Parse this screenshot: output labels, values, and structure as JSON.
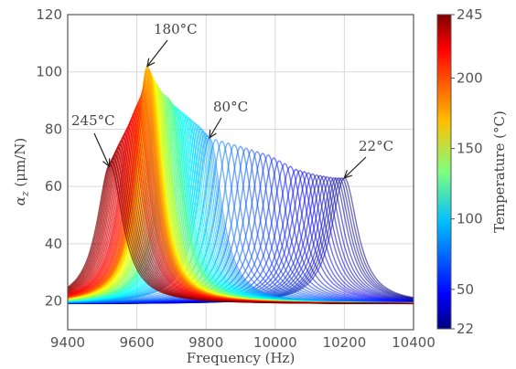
{
  "chart_data": {
    "type": "line",
    "xlabel": "Frequency (Hz)",
    "ylabel": "αz (μm/N)",
    "ylabel_parts": {
      "symbol": "α",
      "subscript": "z",
      "unit": " (μm/N)"
    },
    "xlim": [
      9400,
      10400
    ],
    "ylim": [
      10,
      120
    ],
    "xticks": [
      9400,
      9600,
      9800,
      10000,
      10200,
      10400
    ],
    "xtick_labels": [
      "9400",
      "9600",
      "9800",
      "10000",
      "10200",
      "10400"
    ],
    "yticks": [
      20,
      40,
      60,
      80,
      100,
      120
    ],
    "ytick_labels": [
      "20",
      "40",
      "60",
      "80",
      "100",
      "120"
    ],
    "grid": true,
    "colorbar": {
      "label": "Temperature (°C)",
      "colormap": "jet",
      "range": [
        22,
        245
      ],
      "ticks": [
        22,
        50,
        100,
        150,
        200,
        245
      ],
      "tick_labels": [
        "22",
        "50",
        "100",
        "150",
        "200",
        "245"
      ]
    },
    "series_description": "One frequency-response curve per temperature; each curve is a single resonance peak.",
    "representative_peaks": [
      {
        "temperature": 22,
        "peak_frequency": 10200,
        "peak_value": 63
      },
      {
        "temperature": 30,
        "peak_frequency": 10170,
        "peak_value": 63
      },
      {
        "temperature": 40,
        "peak_frequency": 10120,
        "peak_value": 64
      },
      {
        "temperature": 50,
        "peak_frequency": 10060,
        "peak_value": 66
      },
      {
        "temperature": 60,
        "peak_frequency": 9980,
        "peak_value": 71
      },
      {
        "temperature": 70,
        "peak_frequency": 9900,
        "peak_value": 74
      },
      {
        "temperature": 80,
        "peak_frequency": 9810,
        "peak_value": 77
      },
      {
        "temperature": 90,
        "peak_frequency": 9780,
        "peak_value": 81
      },
      {
        "temperature": 100,
        "peak_frequency": 9750,
        "peak_value": 84
      },
      {
        "temperature": 110,
        "peak_frequency": 9720,
        "peak_value": 87
      },
      {
        "temperature": 120,
        "peak_frequency": 9700,
        "peak_value": 89
      },
      {
        "temperature": 130,
        "peak_frequency": 9690,
        "peak_value": 91
      },
      {
        "temperature": 140,
        "peak_frequency": 9670,
        "peak_value": 93
      },
      {
        "temperature": 150,
        "peak_frequency": 9660,
        "peak_value": 95
      },
      {
        "temperature": 160,
        "peak_frequency": 9645,
        "peak_value": 98
      },
      {
        "temperature": 170,
        "peak_frequency": 9638,
        "peak_value": 100
      },
      {
        "temperature": 180,
        "peak_frequency": 9630,
        "peak_value": 102
      },
      {
        "temperature": 190,
        "peak_frequency": 9625,
        "peak_value": 96
      },
      {
        "temperature": 200,
        "peak_frequency": 9615,
        "peak_value": 92
      },
      {
        "temperature": 210,
        "peak_frequency": 9600,
        "peak_value": 88
      },
      {
        "temperature": 220,
        "peak_frequency": 9580,
        "peak_value": 82
      },
      {
        "temperature": 230,
        "peak_frequency": 9555,
        "peak_value": 76
      },
      {
        "temperature": 245,
        "peak_frequency": 9520,
        "peak_value": 67
      }
    ],
    "annotations": [
      {
        "text": "180°C",
        "points_to": {
          "x": 9630,
          "y": 102
        }
      },
      {
        "text": "80°C",
        "points_to": {
          "x": 9810,
          "y": 77
        }
      },
      {
        "text": "245°C",
        "points_to": {
          "x": 9520,
          "y": 67
        }
      },
      {
        "text": "22°C",
        "points_to": {
          "x": 10200,
          "y": 63
        }
      }
    ]
  }
}
